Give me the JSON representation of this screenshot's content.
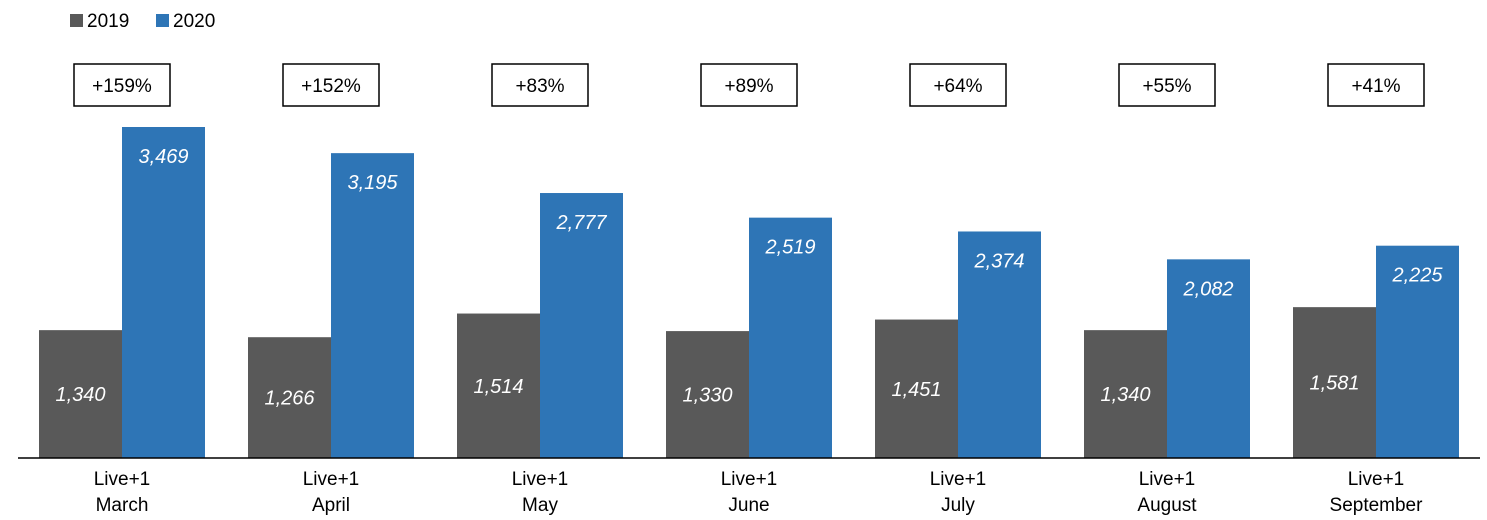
{
  "chart_data": {
    "type": "bar",
    "categories": [
      [
        "Live+1",
        "March"
      ],
      [
        "Live+1",
        "April"
      ],
      [
        "Live+1",
        "May"
      ],
      [
        "Live+1",
        "June"
      ],
      [
        "Live+1",
        "July"
      ],
      [
        "Live+1",
        "August"
      ],
      [
        "Live+1",
        "September"
      ]
    ],
    "series": [
      {
        "name": "2019",
        "color": "#595959",
        "values": [
          1340,
          1266,
          1514,
          1330,
          1451,
          1340,
          1581
        ],
        "labels": [
          "1,340",
          "1,266",
          "1,514",
          "1,330",
          "1,451",
          "1,340",
          "1,581"
        ]
      },
      {
        "name": "2020",
        "color": "#2e75b6",
        "values": [
          3469,
          3195,
          2777,
          2519,
          2374,
          2082,
          2225
        ],
        "labels": [
          "3,469",
          "3,195",
          "2,777",
          "2,519",
          "2,374",
          "2,082",
          "2,225"
        ]
      }
    ],
    "change_labels": [
      "+159%",
      "+152%",
      "+83%",
      "+89%",
      "+64%",
      "+55%",
      "+41%"
    ],
    "title": "",
    "xlabel": "",
    "ylabel": "",
    "ylim": [
      0,
      3600
    ],
    "grid": false,
    "legend": "top-left",
    "colors": {
      "series_2019": "#595959",
      "series_2020": "#2e75b6",
      "axis": "#000000",
      "data_label": "#ffffff"
    }
  }
}
